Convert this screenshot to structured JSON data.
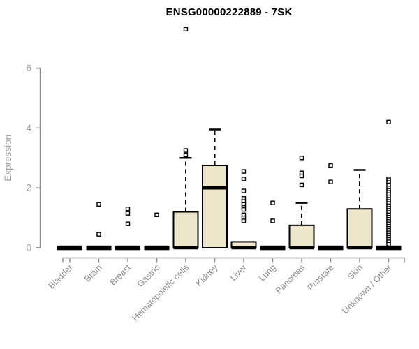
{
  "chart_data": {
    "type": "box",
    "title": "ENSG00000222889 - 7SK",
    "xlabel": "",
    "ylabel": "Expression",
    "yticks": [
      0,
      2,
      4,
      6
    ],
    "ylim": [
      0,
      6
    ],
    "grid": false,
    "legend": "none",
    "categories": [
      "Bladder",
      "Brain",
      "Breast",
      "Gastric",
      "Hematopoietic cells",
      "Kidney",
      "Liver",
      "Lung",
      "Pancreas",
      "Prostate",
      "Skin",
      "Unknown / Other"
    ],
    "boxes": [
      {
        "category": "Bladder",
        "q1": 0,
        "median": 0,
        "q3": 0,
        "whisker_low": 0,
        "whisker_high": 0,
        "outliers": []
      },
      {
        "category": "Brain",
        "q1": 0,
        "median": 0,
        "q3": 0,
        "whisker_low": 0,
        "whisker_high": 0,
        "outliers": [
          1.45,
          0.45
        ]
      },
      {
        "category": "Breast",
        "q1": 0,
        "median": 0,
        "q3": 0,
        "whisker_low": 0,
        "whisker_high": 0,
        "outliers": [
          1.3,
          1.15,
          0.8
        ]
      },
      {
        "category": "Gastric",
        "q1": 0,
        "median": 0,
        "q3": 0,
        "whisker_low": 0,
        "whisker_high": 0,
        "outliers": [
          1.1
        ]
      },
      {
        "category": "Hematopoietic cells",
        "q1": 0,
        "median": 0,
        "q3": 1.2,
        "whisker_low": 0,
        "whisker_high": 3.0,
        "outliers": [
          7.3,
          3.25,
          3.1
        ]
      },
      {
        "category": "Kidney",
        "q1": 0,
        "median": 2.0,
        "q3": 2.75,
        "whisker_low": 0,
        "whisker_high": 3.95,
        "outliers": []
      },
      {
        "category": "Liver",
        "q1": 0,
        "median": 0,
        "q3": 0.2,
        "whisker_low": 0,
        "whisker_high": 0.2,
        "outliers": [
          2.55,
          2.3,
          1.9,
          1.65,
          1.55,
          1.45,
          1.35,
          1.28,
          1.1,
          1.0,
          0.9
        ]
      },
      {
        "category": "Lung",
        "q1": 0,
        "median": 0,
        "q3": 0,
        "whisker_low": 0,
        "whisker_high": 0,
        "outliers": [
          1.5,
          0.9
        ]
      },
      {
        "category": "Pancreas",
        "q1": 0,
        "median": 0,
        "q3": 0.75,
        "whisker_low": 0,
        "whisker_high": 1.5,
        "outliers": [
          3.0,
          2.5,
          2.4,
          2.1
        ]
      },
      {
        "category": "Prostate",
        "q1": 0,
        "median": 0,
        "q3": 0,
        "whisker_low": 0,
        "whisker_high": 0,
        "outliers": [
          2.75,
          2.2
        ]
      },
      {
        "category": "Skin",
        "q1": 0,
        "median": 0,
        "q3": 1.3,
        "whisker_low": 0,
        "whisker_high": 2.6,
        "outliers": []
      },
      {
        "category": "Unknown / Other",
        "q1": 0,
        "median": 0,
        "q3": 0,
        "whisker_low": 0,
        "whisker_high": 0,
        "outliers": [
          4.2,
          2.3,
          2.25,
          2.18,
          2.1,
          2.0,
          1.92,
          1.85,
          1.78,
          1.7,
          1.62,
          1.55,
          1.48,
          1.4,
          1.32,
          1.25,
          1.18,
          1.1,
          1.02,
          0.95,
          0.88,
          0.8,
          0.72,
          0.65,
          0.58,
          0.5,
          0.42,
          0.35,
          0.28,
          0.2,
          0.12
        ]
      }
    ],
    "colors": {
      "box_fill": "#ede6cb",
      "box_border": "#000000",
      "median": "#000000",
      "whisker": "#000000",
      "outlier_stroke": "#000000",
      "outlier_fill": "#ffffff",
      "axis": "#8c8c8c",
      "x_tick_labels": "#8c8c8c",
      "y_tick_labels": "#a0a0a0",
      "ylabel_color": "#a0a0a0",
      "title": "#000000",
      "background": "#ffffff"
    }
  }
}
